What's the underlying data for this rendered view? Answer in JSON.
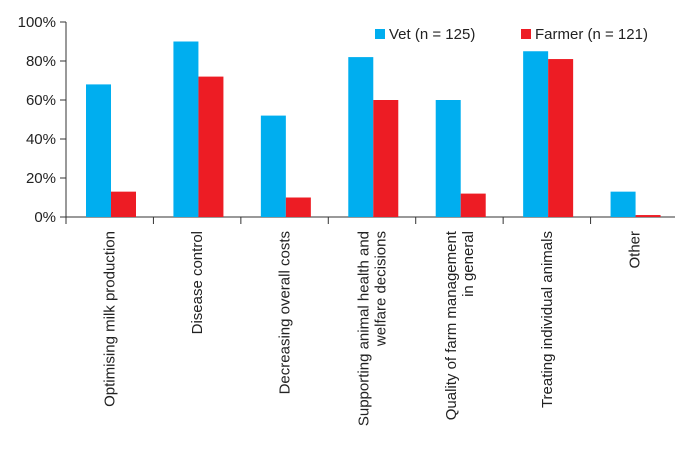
{
  "chart_data": {
    "type": "bar",
    "title": "",
    "xlabel": "",
    "ylabel": "",
    "ylim": [
      0,
      100
    ],
    "yticks": [
      0,
      20,
      40,
      60,
      80,
      100
    ],
    "ytick_format": "%",
    "grid": false,
    "legend_position": "top-right",
    "categories": [
      [
        "Optimising milk production"
      ],
      [
        "Disease control"
      ],
      [
        "Decreasing overall costs"
      ],
      [
        "Supporting animal health and",
        "welfare decisions"
      ],
      [
        "Quality of farm management",
        "in general"
      ],
      [
        "Treating individual animals"
      ],
      [
        "Other"
      ]
    ],
    "series": [
      {
        "name": "Vet (n = 125)",
        "color": "#00AEEF",
        "values": [
          68,
          90,
          52,
          82,
          60,
          85,
          13
        ]
      },
      {
        "name": "Farmer (n = 121)",
        "color": "#ED1C24",
        "values": [
          13,
          72,
          10,
          60,
          12,
          81,
          1
        ]
      }
    ]
  }
}
